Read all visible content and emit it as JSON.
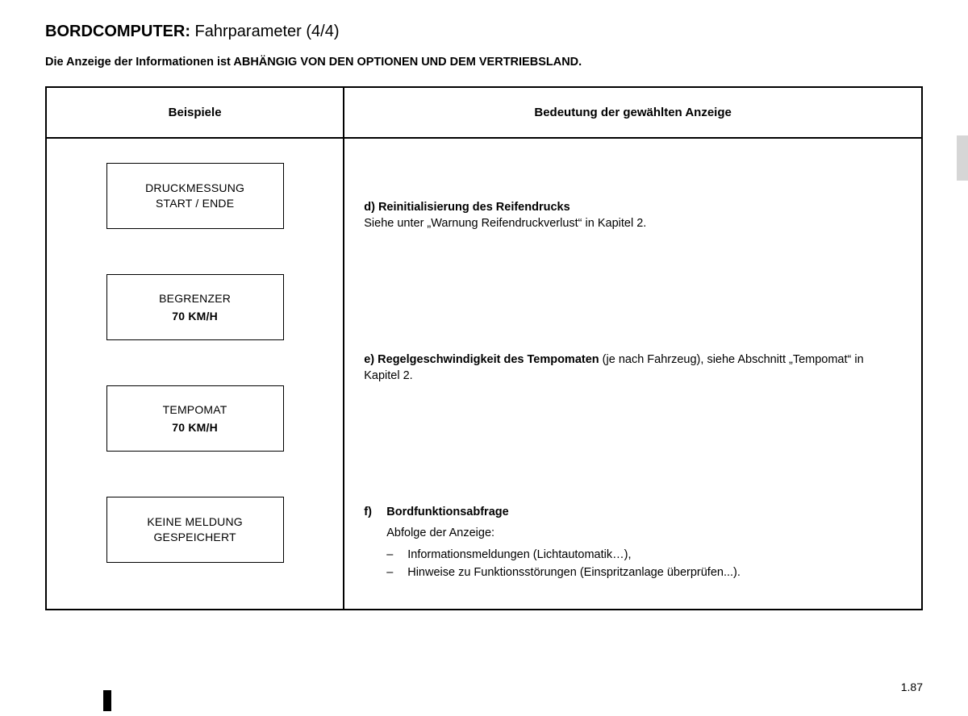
{
  "header": {
    "title_bold": "BORDCOMPUTER:",
    "title_rest": " Fahrparameter  (4/4)",
    "subtitle": "Die Anzeige der Informationen ist ABHÄNGIG VON DEN OPTIONEN UND DEM VERTRIEBSLAND."
  },
  "table": {
    "col1_header": "Beispiele",
    "col2_header": "Bedeutung der gewählten Anzeige",
    "examples": [
      {
        "line1": "DRUCKMESSUNG",
        "line2": "START / ENDE",
        "line2_bold": false
      },
      {
        "line1": "BEGRENZER",
        "line2": "70 KM/H",
        "line2_bold": true
      },
      {
        "line1": "TEMPOMAT",
        "line2": "70 KM/H",
        "line2_bold": true
      },
      {
        "line1": "KEINE MELDUNG",
        "line2": "GESPEICHERT",
        "line2_bold": false
      }
    ],
    "meanings": {
      "d": {
        "title": "d) Reinitialisierung des Reifendrucks",
        "body": "Siehe unter „Warnung Reifendruckverlust“ in Kapitel 2."
      },
      "e": {
        "title": "e) Regelgeschwindigkeit des Tempomaten",
        "rest": " (je nach Fahrzeug), siehe Abschnitt „Tempomat“ in Kapitel 2."
      },
      "f": {
        "letter": "f)",
        "title": "Bordfunktionsabfrage",
        "sub": "Abfolge der Anzeige:",
        "items": [
          "Informationsmeldungen (Lichtautomatik…),",
          "Hinweise zu Funktionsstörungen (Einspritzanlage überprüfen...)."
        ]
      }
    }
  },
  "page_number": "1.87",
  "colors": {
    "text": "#000000",
    "background": "#ffffff",
    "border": "#000000",
    "edge_tab": "#d6d6d6"
  }
}
